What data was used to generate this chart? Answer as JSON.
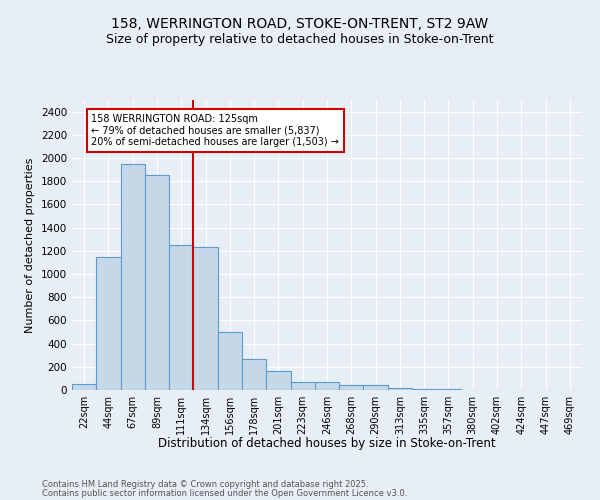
{
  "title_line1": "158, WERRINGTON ROAD, STOKE-ON-TRENT, ST2 9AW",
  "title_line2": "Size of property relative to detached houses in Stoke-on-Trent",
  "xlabel": "Distribution of detached houses by size in Stoke-on-Trent",
  "ylabel": "Number of detached properties",
  "categories": [
    "22sqm",
    "44sqm",
    "67sqm",
    "89sqm",
    "111sqm",
    "134sqm",
    "156sqm",
    "178sqm",
    "201sqm",
    "223sqm",
    "246sqm",
    "268sqm",
    "290sqm",
    "313sqm",
    "335sqm",
    "357sqm",
    "380sqm",
    "402sqm",
    "424sqm",
    "447sqm",
    "469sqm"
  ],
  "values": [
    50,
    1150,
    1950,
    1850,
    1250,
    1230,
    500,
    270,
    160,
    70,
    70,
    40,
    40,
    20,
    10,
    5,
    3,
    2,
    1,
    1,
    1
  ],
  "bar_color": "#c5d8e8",
  "bar_edge_color": "#5b9bd5",
  "vline_color": "#cc0000",
  "annotation_text": "158 WERRINGTON ROAD: 125sqm\n← 79% of detached houses are smaller (5,837)\n20% of semi-detached houses are larger (1,503) →",
  "annotation_box_color": "#ffffff",
  "annotation_box_edge_color": "#cc0000",
  "ylim": [
    0,
    2500
  ],
  "yticks": [
    0,
    200,
    400,
    600,
    800,
    1000,
    1200,
    1400,
    1600,
    1800,
    2000,
    2200,
    2400
  ],
  "background_color": "#e8eef5",
  "footer_line1": "Contains HM Land Registry data © Crown copyright and database right 2025.",
  "footer_line2": "Contains public sector information licensed under the Open Government Licence v3.0.",
  "title_fontsize": 10,
  "subtitle_fontsize": 9,
  "grid_color": "#ffffff"
}
